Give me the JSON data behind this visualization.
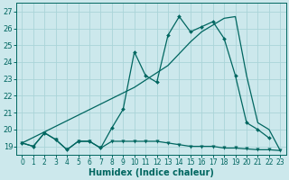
{
  "xlabel": "Humidex (Indice chaleur)",
  "bg_color": "#cce8ec",
  "grid_color": "#aad4d8",
  "line_color": "#006660",
  "xlim": [
    -0.5,
    23.5
  ],
  "ylim": [
    18.5,
    27.5
  ],
  "xticks": [
    0,
    1,
    2,
    3,
    4,
    5,
    6,
    7,
    8,
    9,
    10,
    11,
    12,
    13,
    14,
    15,
    16,
    17,
    18,
    19,
    20,
    21,
    22,
    23
  ],
  "yticks": [
    19,
    20,
    21,
    22,
    23,
    24,
    25,
    26,
    27
  ],
  "series1_x": [
    0,
    1,
    2,
    3,
    4,
    5,
    6,
    7,
    8,
    9,
    10,
    11,
    12,
    13,
    14,
    15,
    16,
    17,
    18,
    19,
    20,
    21,
    22,
    23
  ],
  "series1_y": [
    19.2,
    19.0,
    19.8,
    19.4,
    18.8,
    19.3,
    19.3,
    18.9,
    19.3,
    19.3,
    19.3,
    19.3,
    19.3,
    19.2,
    19.1,
    19.0,
    19.0,
    19.0,
    18.9,
    18.9,
    18.85,
    18.8,
    18.8,
    18.75
  ],
  "series2_x": [
    0,
    1,
    2,
    3,
    4,
    5,
    6,
    7,
    8,
    9,
    10,
    11,
    12,
    13,
    14,
    15,
    16,
    17,
    18,
    19,
    20,
    21,
    22
  ],
  "series2_y": [
    19.2,
    19.0,
    19.8,
    19.4,
    18.8,
    19.3,
    19.3,
    18.9,
    20.1,
    21.2,
    24.6,
    23.2,
    22.8,
    25.6,
    26.7,
    25.8,
    26.1,
    26.4,
    25.4,
    23.2,
    20.4,
    20.0,
    19.5
  ],
  "series3_x": [
    0,
    10,
    13,
    14,
    15,
    16,
    17,
    18,
    19,
    20,
    21,
    22,
    23
  ],
  "series3_y": [
    19.2,
    22.5,
    23.8,
    24.5,
    25.2,
    25.8,
    26.2,
    26.6,
    26.7,
    23.2,
    20.4,
    20.0,
    18.75
  ]
}
